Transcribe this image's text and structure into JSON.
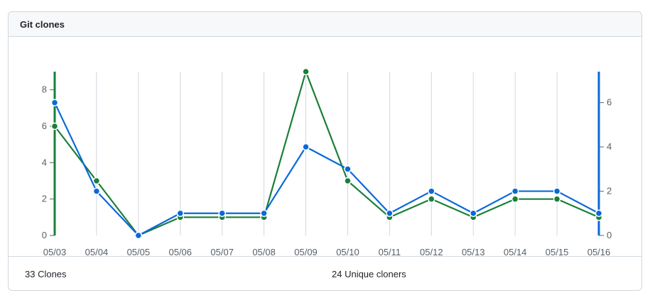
{
  "panel": {
    "title": "Git clones"
  },
  "summary": {
    "clones_label": "33 Clones",
    "unique_label": "24 Unique cloners"
  },
  "colors": {
    "clones": "#1a7f37",
    "unique": "#0969da",
    "grid": "#d0d7de",
    "text": "#57606a"
  },
  "chart_data": {
    "type": "line",
    "x": [
      "05/03",
      "05/04",
      "05/05",
      "05/06",
      "05/07",
      "05/08",
      "05/09",
      "05/10",
      "05/11",
      "05/12",
      "05/13",
      "05/14",
      "05/15",
      "05/16"
    ],
    "series": [
      {
        "values": [
          6,
          3,
          0,
          1,
          1,
          1,
          9,
          3,
          1,
          2,
          1,
          2,
          2,
          1
        ],
        "axis": "left",
        "color": "#1a7f37"
      },
      {
        "values": [
          6,
          2,
          0,
          1,
          1,
          1,
          4,
          3,
          1,
          2,
          1,
          2,
          2,
          1
        ],
        "axis": "right",
        "color": "#0969da"
      }
    ],
    "y_left": {
      "ticks": [
        0,
        2,
        4,
        6,
        8
      ],
      "ylim": [
        0,
        9
      ]
    },
    "y_right": {
      "ticks": [
        0,
        2,
        4,
        6
      ],
      "ylim": [
        0,
        7.4
      ]
    },
    "grid": "vertical",
    "legend": "none"
  }
}
